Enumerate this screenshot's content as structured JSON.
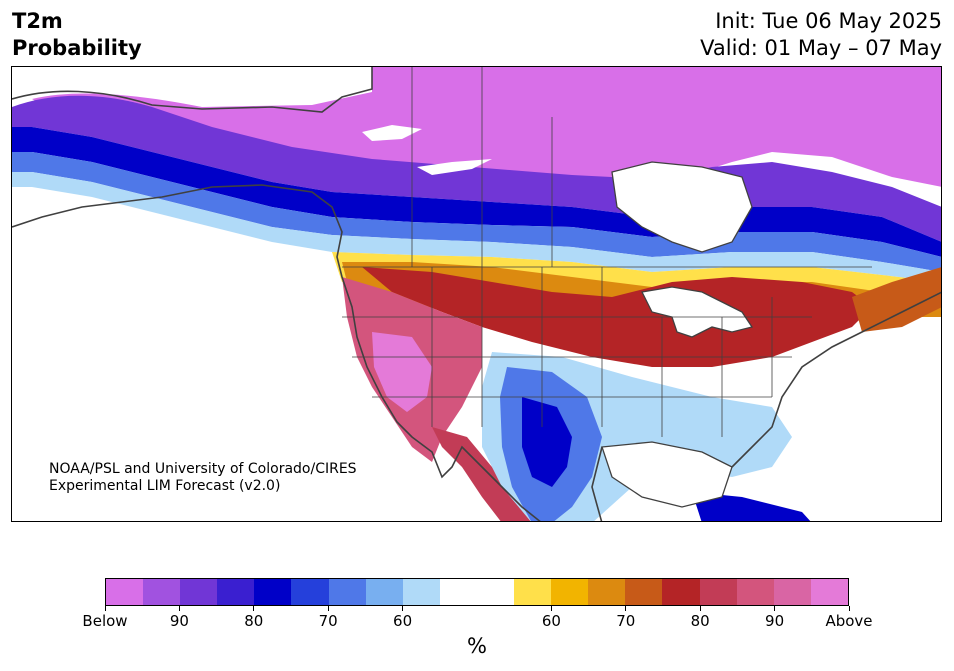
{
  "header": {
    "title_line1": "T2m",
    "title_line2": "Probability",
    "init_label": "Init: Tue 06 May 2025",
    "valid_label": "Valid: 01 May – 07 May"
  },
  "credit": {
    "line1": "NOAA/PSL and University of Colorado/CIRES",
    "line2": "Experimental LIM Forecast (v2.0)"
  },
  "colorbar": {
    "colors": [
      "#d86fe8",
      "#a152e0",
      "#7136d6",
      "#3a1fd0",
      "#0000c8",
      "#2540db",
      "#4f78e8",
      "#78aff0",
      "#b0daf8",
      "#ffffff",
      "#ffffff",
      "#ffe04a",
      "#f2b400",
      "#dc8a10",
      "#c75a18",
      "#b42426",
      "#c23c56",
      "#d3557d",
      "#d965a4",
      "#e47ad8"
    ],
    "tick_labels": [
      "Below",
      "90",
      "80",
      "70",
      "60",
      "60",
      "70",
      "80",
      "90",
      "Above"
    ],
    "unit": "%"
  },
  "map": {
    "region": "North America",
    "colors": {
      "above_extreme": "#e47ad8",
      "below_extreme": "#d86fe8",
      "warm_core": "#b42426",
      "warm_pink": "#d3557d",
      "cold_core": "#0000c8",
      "land_outline": "#404040"
    }
  }
}
